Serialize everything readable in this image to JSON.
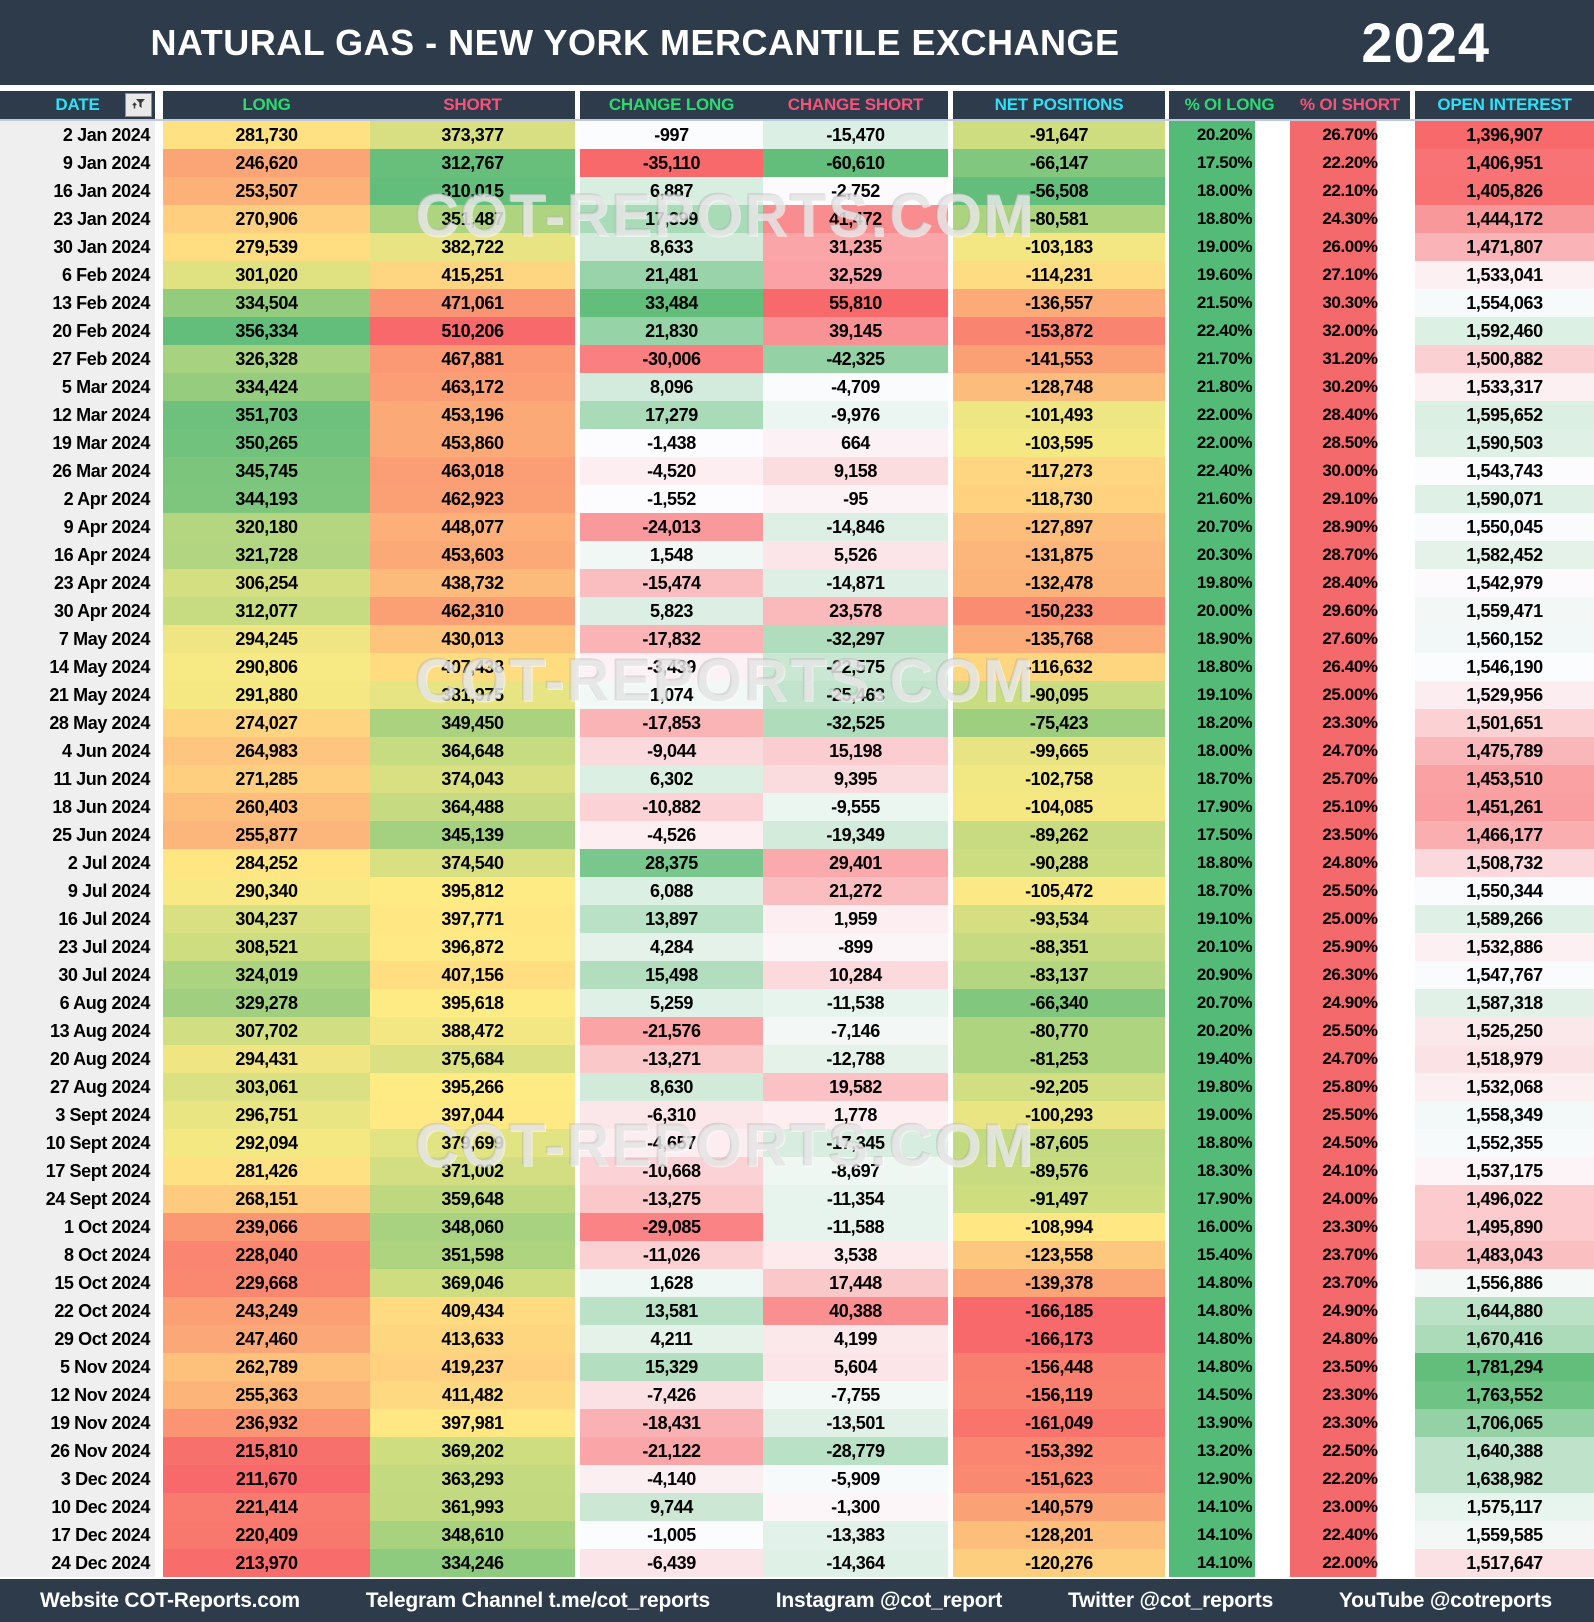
{
  "title": {
    "name": "NATURAL GAS - NEW YORK MERCANTILE EXCHANGE",
    "year": "2024"
  },
  "watermark": {
    "text": "COT-REPORTS.COM"
  },
  "filter_icon": "funnel-with-up-arrow",
  "colors": {
    "header_bg": "#2d3b4b",
    "header_cyan": "#2fe0f6",
    "header_green": "#2bdb72",
    "header_pink": "#f5537a",
    "scale_red": "#f8696b",
    "scale_yellow": "#ffeb84",
    "scale_green": "#63be7b",
    "scale_white": "#fcfcff",
    "oi_long_green": "#53ba77",
    "oi_short_red": "#f4696b",
    "date_cell_bg": "#efefef",
    "header_divider": "#bfc9dc"
  },
  "chart_data": {
    "type": "table",
    "title": "NATURAL GAS - NEW YORK MERCANTILE EXCHANGE",
    "subtitle": "2024",
    "columns": [
      "DATE",
      "LONG",
      "SHORT",
      "CHANGE LONG",
      "CHANGE SHORT",
      "NET POSITIONS",
      "% OI LONG",
      "% OI SHORT",
      "OPEN INTEREST"
    ],
    "rows": [
      [
        "2 Jan 2024",
        "281,730",
        "373,377",
        "-997",
        "-15,470",
        "-91,647",
        "20.20%",
        "26.70%",
        "1,396,907"
      ],
      [
        "9 Jan 2024",
        "246,620",
        "312,767",
        "-35,110",
        "-60,610",
        "-66,147",
        "17.50%",
        "22.20%",
        "1,406,951"
      ],
      [
        "16 Jan 2024",
        "253,507",
        "310,015",
        "6,887",
        "-2,752",
        "-56,508",
        "18.00%",
        "22.10%",
        "1,405,826"
      ],
      [
        "23 Jan 2024",
        "270,906",
        "351,487",
        "17,399",
        "41,472",
        "-80,581",
        "18.80%",
        "24.30%",
        "1,444,172"
      ],
      [
        "30 Jan 2024",
        "279,539",
        "382,722",
        "8,633",
        "31,235",
        "-103,183",
        "19.00%",
        "26.00%",
        "1,471,807"
      ],
      [
        "6 Feb 2024",
        "301,020",
        "415,251",
        "21,481",
        "32,529",
        "-114,231",
        "19.60%",
        "27.10%",
        "1,533,041"
      ],
      [
        "13 Feb 2024",
        "334,504",
        "471,061",
        "33,484",
        "55,810",
        "-136,557",
        "21.50%",
        "30.30%",
        "1,554,063"
      ],
      [
        "20 Feb 2024",
        "356,334",
        "510,206",
        "21,830",
        "39,145",
        "-153,872",
        "22.40%",
        "32.00%",
        "1,592,460"
      ],
      [
        "27 Feb 2024",
        "326,328",
        "467,881",
        "-30,006",
        "-42,325",
        "-141,553",
        "21.70%",
        "31.20%",
        "1,500,882"
      ],
      [
        "5 Mar 2024",
        "334,424",
        "463,172",
        "8,096",
        "-4,709",
        "-128,748",
        "21.80%",
        "30.20%",
        "1,533,317"
      ],
      [
        "12 Mar 2024",
        "351,703",
        "453,196",
        "17,279",
        "-9,976",
        "-101,493",
        "22.00%",
        "28.40%",
        "1,595,652"
      ],
      [
        "19 Mar 2024",
        "350,265",
        "453,860",
        "-1,438",
        "664",
        "-103,595",
        "22.00%",
        "28.50%",
        "1,590,503"
      ],
      [
        "26 Mar 2024",
        "345,745",
        "463,018",
        "-4,520",
        "9,158",
        "-117,273",
        "22.40%",
        "30.00%",
        "1,543,743"
      ],
      [
        "2 Apr 2024",
        "344,193",
        "462,923",
        "-1,552",
        "-95",
        "-118,730",
        "21.60%",
        "29.10%",
        "1,590,071"
      ],
      [
        "9 Apr 2024",
        "320,180",
        "448,077",
        "-24,013",
        "-14,846",
        "-127,897",
        "20.70%",
        "28.90%",
        "1,550,045"
      ],
      [
        "16 Apr 2024",
        "321,728",
        "453,603",
        "1,548",
        "5,526",
        "-131,875",
        "20.30%",
        "28.70%",
        "1,582,452"
      ],
      [
        "23 Apr 2024",
        "306,254",
        "438,732",
        "-15,474",
        "-14,871",
        "-132,478",
        "19.80%",
        "28.40%",
        "1,542,979"
      ],
      [
        "30 Apr 2024",
        "312,077",
        "462,310",
        "5,823",
        "23,578",
        "-150,233",
        "20.00%",
        "29.60%",
        "1,559,471"
      ],
      [
        "7 May 2024",
        "294,245",
        "430,013",
        "-17,832",
        "-32,297",
        "-135,768",
        "18.90%",
        "27.60%",
        "1,560,152"
      ],
      [
        "14 May 2024",
        "290,806",
        "407,438",
        "-3,439",
        "-22,575",
        "-116,632",
        "18.80%",
        "26.40%",
        "1,546,190"
      ],
      [
        "21 May 2024",
        "291,880",
        "381,975",
        "1,074",
        "-25,463",
        "-90,095",
        "19.10%",
        "25.00%",
        "1,529,956"
      ],
      [
        "28 May 2024",
        "274,027",
        "349,450",
        "-17,853",
        "-32,525",
        "-75,423",
        "18.20%",
        "23.30%",
        "1,501,651"
      ],
      [
        "4 Jun 2024",
        "264,983",
        "364,648",
        "-9,044",
        "15,198",
        "-99,665",
        "18.00%",
        "24.70%",
        "1,475,789"
      ],
      [
        "11 Jun 2024",
        "271,285",
        "374,043",
        "6,302",
        "9,395",
        "-102,758",
        "18.70%",
        "25.70%",
        "1,453,510"
      ],
      [
        "18 Jun 2024",
        "260,403",
        "364,488",
        "-10,882",
        "-9,555",
        "-104,085",
        "17.90%",
        "25.10%",
        "1,451,261"
      ],
      [
        "25 Jun 2024",
        "255,877",
        "345,139",
        "-4,526",
        "-19,349",
        "-89,262",
        "17.50%",
        "23.50%",
        "1,466,177"
      ],
      [
        "2 Jul 2024",
        "284,252",
        "374,540",
        "28,375",
        "29,401",
        "-90,288",
        "18.80%",
        "24.80%",
        "1,508,732"
      ],
      [
        "9 Jul 2024",
        "290,340",
        "395,812",
        "6,088",
        "21,272",
        "-105,472",
        "18.70%",
        "25.50%",
        "1,550,344"
      ],
      [
        "16 Jul 2024",
        "304,237",
        "397,771",
        "13,897",
        "1,959",
        "-93,534",
        "19.10%",
        "25.00%",
        "1,589,266"
      ],
      [
        "23 Jul 2024",
        "308,521",
        "396,872",
        "4,284",
        "-899",
        "-88,351",
        "20.10%",
        "25.90%",
        "1,532,886"
      ],
      [
        "30 Jul 2024",
        "324,019",
        "407,156",
        "15,498",
        "10,284",
        "-83,137",
        "20.90%",
        "26.30%",
        "1,547,767"
      ],
      [
        "6 Aug 2024",
        "329,278",
        "395,618",
        "5,259",
        "-11,538",
        "-66,340",
        "20.70%",
        "24.90%",
        "1,587,318"
      ],
      [
        "13 Aug 2024",
        "307,702",
        "388,472",
        "-21,576",
        "-7,146",
        "-80,770",
        "20.20%",
        "25.50%",
        "1,525,250"
      ],
      [
        "20 Aug 2024",
        "294,431",
        "375,684",
        "-13,271",
        "-12,788",
        "-81,253",
        "19.40%",
        "24.70%",
        "1,518,979"
      ],
      [
        "27 Aug 2024",
        "303,061",
        "395,266",
        "8,630",
        "19,582",
        "-92,205",
        "19.80%",
        "25.80%",
        "1,532,068"
      ],
      [
        "3 Sept 2024",
        "296,751",
        "397,044",
        "-6,310",
        "1,778",
        "-100,293",
        "19.00%",
        "25.50%",
        "1,558,349"
      ],
      [
        "10 Sept 2024",
        "292,094",
        "379,699",
        "-4,657",
        "-17,345",
        "-87,605",
        "18.80%",
        "24.50%",
        "1,552,355"
      ],
      [
        "17 Sept 2024",
        "281,426",
        "371,002",
        "-10,668",
        "-8,697",
        "-89,576",
        "18.30%",
        "24.10%",
        "1,537,175"
      ],
      [
        "24 Sept 2024",
        "268,151",
        "359,648",
        "-13,275",
        "-11,354",
        "-91,497",
        "17.90%",
        "24.00%",
        "1,496,022"
      ],
      [
        "1 Oct 2024",
        "239,066",
        "348,060",
        "-29,085",
        "-11,588",
        "-108,994",
        "16.00%",
        "23.30%",
        "1,495,890"
      ],
      [
        "8 Oct 2024",
        "228,040",
        "351,598",
        "-11,026",
        "3,538",
        "-123,558",
        "15.40%",
        "23.70%",
        "1,483,043"
      ],
      [
        "15 Oct 2024",
        "229,668",
        "369,046",
        "1,628",
        "17,448",
        "-139,378",
        "14.80%",
        "23.70%",
        "1,556,886"
      ],
      [
        "22 Oct 2024",
        "243,249",
        "409,434",
        "13,581",
        "40,388",
        "-166,185",
        "14.80%",
        "24.90%",
        "1,644,880"
      ],
      [
        "29 Oct 2024",
        "247,460",
        "413,633",
        "4,211",
        "4,199",
        "-166,173",
        "14.80%",
        "24.80%",
        "1,670,416"
      ],
      [
        "5 Nov 2024",
        "262,789",
        "419,237",
        "15,329",
        "5,604",
        "-156,448",
        "14.80%",
        "23.50%",
        "1,781,294"
      ],
      [
        "12 Nov 2024",
        "255,363",
        "411,482",
        "-7,426",
        "-7,755",
        "-156,119",
        "14.50%",
        "23.30%",
        "1,763,552"
      ],
      [
        "19 Nov 2024",
        "236,932",
        "397,981",
        "-18,431",
        "-13,501",
        "-161,049",
        "13.90%",
        "23.30%",
        "1,706,065"
      ],
      [
        "26 Nov 2024",
        "215,810",
        "369,202",
        "-21,122",
        "-28,779",
        "-153,392",
        "13.20%",
        "22.50%",
        "1,640,388"
      ],
      [
        "3 Dec 2024",
        "211,670",
        "363,293",
        "-4,140",
        "-5,909",
        "-151,623",
        "12.90%",
        "22.20%",
        "1,638,982"
      ],
      [
        "10 Dec 2024",
        "221,414",
        "361,993",
        "9,744",
        "-1,300",
        "-140,579",
        "14.10%",
        "23.00%",
        "1,575,117"
      ],
      [
        "17 Dec 2024",
        "220,409",
        "348,610",
        "-1,005",
        "-13,383",
        "-128,201",
        "14.10%",
        "22.40%",
        "1,559,585"
      ],
      [
        "24 Dec 2024",
        "213,970",
        "334,246",
        "-6,439",
        "-14,364",
        "-120,276",
        "14.10%",
        "22.00%",
        "1,517,647"
      ]
    ]
  },
  "footer": {
    "items": [
      "Website COT-Reports.com",
      "Telegram Channel t.me/cot_reports",
      "Instagram @cot_report",
      "Twitter @cot_reports",
      "YouTube @cotreports"
    ]
  }
}
